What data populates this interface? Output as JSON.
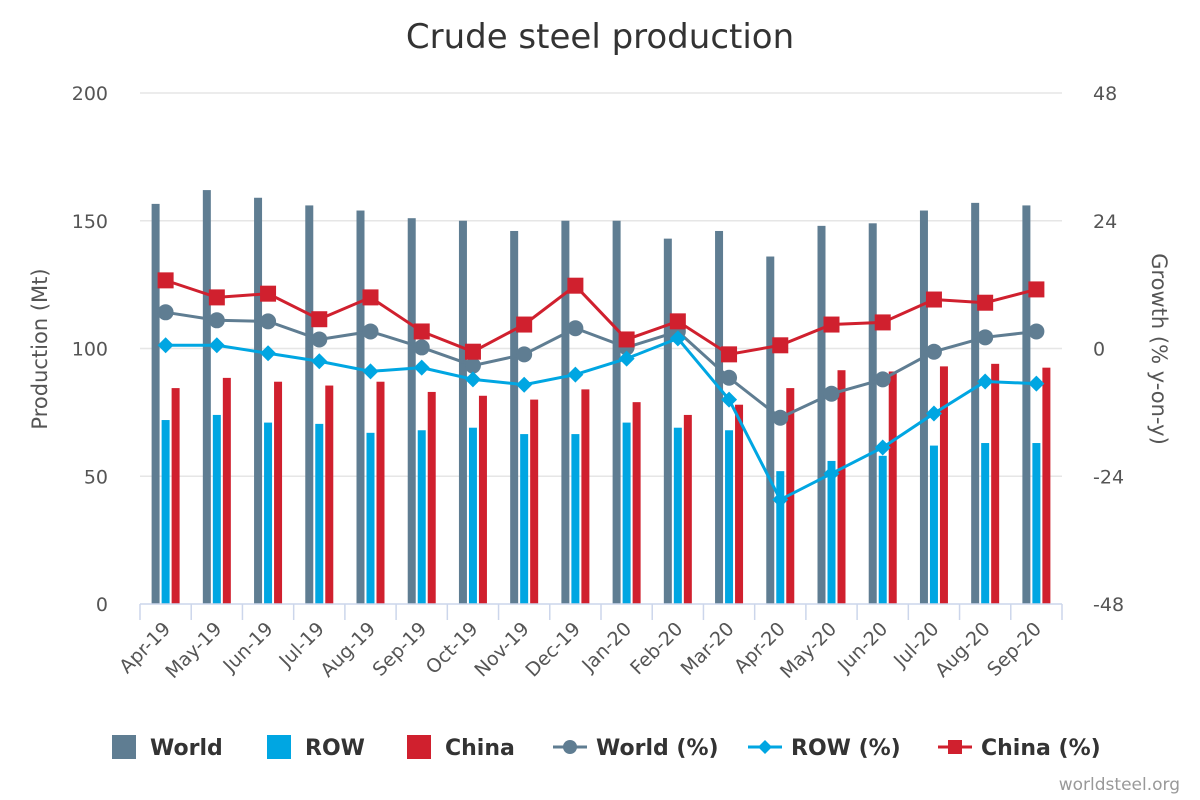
{
  "chart_data": {
    "type": "bar",
    "title": "Crude steel production",
    "xlabel": "",
    "ylabel": "Production (Mt)",
    "y2label": "Growth (% y-on-y)",
    "ylim": [
      0,
      200
    ],
    "y2lim": [
      -48,
      48
    ],
    "yticks": [
      "0",
      "50",
      "100",
      "150",
      "200"
    ],
    "y2ticks": [
      "-48",
      "-24",
      "0",
      "24",
      "48"
    ],
    "grid": true,
    "legend_position": "bottom",
    "credit": "worldsteel.org",
    "categories": [
      "Apr-19",
      "May-19",
      "Jun-19",
      "Jul-19",
      "Aug-19",
      "Sep-19",
      "Oct-19",
      "Nov-19",
      "Dec-19",
      "Jan-20",
      "Feb-20",
      "Mar-20",
      "Apr-20",
      "May-20",
      "Jun-20",
      "Jul-20",
      "Aug-20",
      "Sep-20"
    ],
    "series": [
      {
        "name": "World",
        "type": "bar",
        "axis": "left",
        "color": "#5f7d92",
        "values": [
          156.6,
          162,
          159,
          156,
          154,
          151,
          150,
          146,
          150,
          150,
          143,
          146,
          136,
          148,
          149,
          154,
          157,
          156
        ]
      },
      {
        "name": "ROW",
        "type": "bar",
        "axis": "left",
        "color": "#00a6e2",
        "values": [
          72,
          74,
          71,
          70.5,
          67,
          68,
          69,
          66.5,
          66.5,
          71,
          69,
          68,
          52,
          56,
          58,
          62,
          63,
          63
        ]
      },
      {
        "name": "China",
        "type": "bar",
        "axis": "left",
        "color": "#d0202e",
        "values": [
          84.5,
          88.5,
          87,
          85.5,
          87,
          83,
          81.5,
          80,
          84,
          79,
          74,
          78,
          84.5,
          91.5,
          91,
          93,
          94,
          92.5
        ]
      },
      {
        "name": "World (%)",
        "type": "line",
        "marker": "circle",
        "axis": "right",
        "color": "#5f7d92",
        "values": [
          6.8,
          5.3,
          5.1,
          1.7,
          3.2,
          0.2,
          -3.2,
          -1.1,
          3.8,
          0.2,
          3.2,
          -5.5,
          -13,
          -8.5,
          -5.8,
          -0.6,
          2.1,
          3.2
        ]
      },
      {
        "name": "ROW (%)",
        "type": "line",
        "marker": "diamond",
        "axis": "right",
        "color": "#00a6e2",
        "values": [
          0.6,
          0.6,
          -0.9,
          -2.4,
          -4.3,
          -3.6,
          -5.8,
          -6.8,
          -4.9,
          -1.9,
          1.9,
          -9.6,
          -28.4,
          -23.5,
          -18.6,
          -12.2,
          -6.2,
          -6.6
        ]
      },
      {
        "name": "China (%)",
        "type": "line",
        "marker": "square",
        "axis": "right",
        "color": "#d0202e",
        "values": [
          12.8,
          9.6,
          10.3,
          5.5,
          9.6,
          3.2,
          -0.6,
          4.5,
          11.8,
          1.7,
          5.1,
          -1.1,
          0.6,
          4.5,
          4.9,
          9.2,
          8.6,
          11.1
        ]
      }
    ]
  }
}
